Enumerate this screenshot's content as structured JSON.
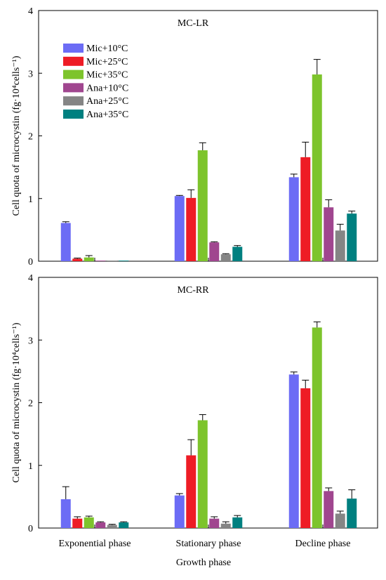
{
  "chart_data": [
    {
      "type": "bar",
      "title": "MC-LR",
      "xlabel": "",
      "ylabel": "Cell quota of microcystin (fg·10⁴cells⁻¹)",
      "ylim": [
        0,
        4
      ],
      "yticks": [
        "0",
        "1",
        "2",
        "3",
        "4"
      ],
      "categories": [
        "Exponential phase",
        "Stationary phase",
        "Decline phase"
      ],
      "legend_position": "top-left",
      "series": [
        {
          "name": "Mic+10°C",
          "color": "#6c6cf5",
          "values": [
            0.61,
            1.04,
            1.34
          ],
          "errors": [
            0.02,
            0.01,
            0.05
          ]
        },
        {
          "name": "Mic+25°C",
          "color": "#ee1c25",
          "values": [
            0.04,
            1.01,
            1.66
          ],
          "errors": [
            0.01,
            0.13,
            0.24
          ]
        },
        {
          "name": "Mic+35°C",
          "color": "#7dc42c",
          "values": [
            0.06,
            1.77,
            2.98
          ],
          "errors": [
            0.03,
            0.12,
            0.24
          ]
        },
        {
          "name": "Ana+10°C",
          "color": "#a0468f",
          "values": [
            0.01,
            0.3,
            0.86
          ],
          "errors": [
            0,
            0.01,
            0.12
          ]
        },
        {
          "name": "Ana+25°C",
          "color": "#858585",
          "values": [
            0.01,
            0.11,
            0.49
          ],
          "errors": [
            0,
            0.01,
            0.1
          ]
        },
        {
          "name": "Ana+35°C",
          "color": "#008080",
          "values": [
            0.01,
            0.23,
            0.76
          ],
          "errors": [
            0,
            0.02,
            0.04
          ]
        }
      ]
    },
    {
      "type": "bar",
      "title": "MC-RR",
      "xlabel": "Growth phase",
      "ylabel": "Cell quota of microcystin (fg·10⁴cells⁻¹)",
      "ylim": [
        0,
        4
      ],
      "yticks": [
        "0",
        "1",
        "2",
        "3",
        "4"
      ],
      "categories": [
        "Exponential phase",
        "Stationary phase",
        "Decline phase"
      ],
      "series": [
        {
          "name": "Mic+10°C",
          "color": "#6c6cf5",
          "values": [
            0.46,
            0.52,
            2.45
          ],
          "errors": [
            0.2,
            0.03,
            0.04
          ]
        },
        {
          "name": "Mic+25°C",
          "color": "#ee1c25",
          "values": [
            0.15,
            1.16,
            2.23
          ],
          "errors": [
            0.03,
            0.25,
            0.13
          ]
        },
        {
          "name": "Mic+35°C",
          "color": "#7dc42c",
          "values": [
            0.17,
            1.72,
            3.2
          ],
          "errors": [
            0.02,
            0.09,
            0.09
          ]
        },
        {
          "name": "Ana+10°C",
          "color": "#a0468f",
          "values": [
            0.09,
            0.15,
            0.59
          ],
          "errors": [
            0.01,
            0.03,
            0.05
          ]
        },
        {
          "name": "Ana+25°C",
          "color": "#858585",
          "values": [
            0.05,
            0.07,
            0.23
          ],
          "errors": [
            0.01,
            0.03,
            0.04
          ]
        },
        {
          "name": "Ana+35°C",
          "color": "#008080",
          "values": [
            0.09,
            0.17,
            0.47
          ],
          "errors": [
            0.01,
            0.03,
            0.14
          ]
        }
      ]
    }
  ]
}
